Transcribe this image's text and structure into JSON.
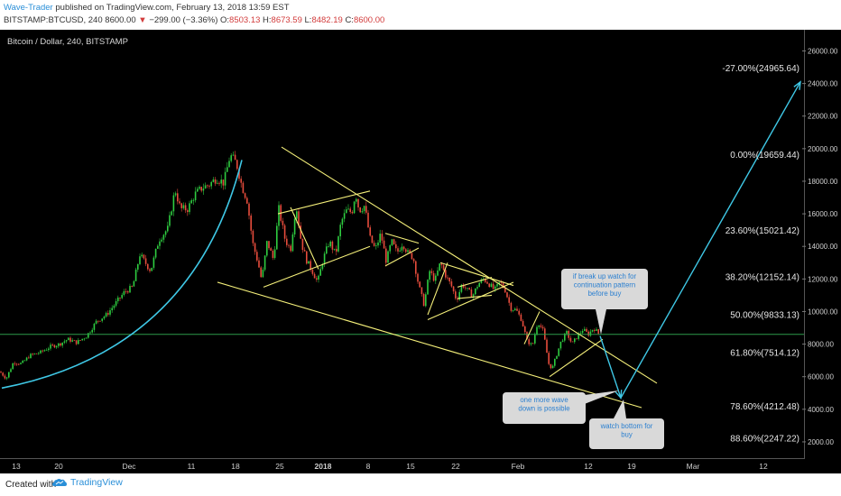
{
  "header": {
    "author": "Wave-Trader",
    "published_text": " published on TradingView.com, February 13, 2018 13:59 EST",
    "symbol": "BITSTAMP:BTCUSD, 240",
    "last": "8600.00",
    "change_arrow": "▼",
    "change": "−299.00 (−3.36%)",
    "o_label": "O:",
    "o_value": "8503.13",
    "h_label": "H:",
    "h_value": "8673.59",
    "l_label": "L:",
    "l_value": "8482.19",
    "c_label": "C:",
    "c_value": "8600.00"
  },
  "footer": {
    "created_with": "Created with",
    "brand": "TradingView",
    "logo_icon": "tradingview-cloud-icon"
  },
  "colors": {
    "background": "#000000",
    "candle_up": "#2ecc40",
    "candle_down": "#e74c3c",
    "trendline": "#f5f07a",
    "curve": "#3fc8e6",
    "hline": "#2d9a4a",
    "price_tag": "#2ecc40",
    "callout_bg": "#d9d9d9",
    "callout_text": "#2a7fd0"
  },
  "chart_data": {
    "type": "candlestick",
    "title": "Bitcoin / Dollar, 240, BITSTAMP",
    "ylim": [
      1000,
      27300
    ],
    "y_ticks": [
      "26000.00",
      "24000.00",
      "22000.00",
      "20000.00",
      "18000.00",
      "16000.00",
      "14000.00",
      "12000.00",
      "10000.00",
      "8000.00",
      "6000.00",
      "4000.00",
      "2000.00"
    ],
    "x_ticks": [
      "13",
      "20",
      "Dec",
      "11",
      "18",
      "25",
      "2018",
      "8",
      "15",
      "22",
      "Feb",
      "12",
      "19",
      "Mar",
      "12"
    ],
    "current_price": 8600,
    "current_price_label": "8600.00",
    "price_path": [
      [
        0,
        6300
      ],
      [
        7,
        5900
      ],
      [
        15,
        6900
      ],
      [
        24,
        6800
      ],
      [
        33,
        7300
      ],
      [
        45,
        7500
      ],
      [
        56,
        7850
      ],
      [
        66,
        8000
      ],
      [
        75,
        8300
      ],
      [
        85,
        8100
      ],
      [
        96,
        8500
      ],
      [
        107,
        9400
      ],
      [
        118,
        9800
      ],
      [
        128,
        10500
      ],
      [
        138,
        11200
      ],
      [
        147,
        11500
      ],
      [
        155,
        13500
      ],
      [
        167,
        12500
      ],
      [
        176,
        14400
      ],
      [
        186,
        15100
      ],
      [
        194,
        17500
      ],
      [
        200,
        16300
      ],
      [
        208,
        16300
      ],
      [
        216,
        17200
      ],
      [
        224,
        17600
      ],
      [
        232,
        17800
      ],
      [
        240,
        18200
      ],
      [
        248,
        17900
      ],
      [
        255,
        19600
      ],
      [
        262,
        19100
      ],
      [
        268,
        17700
      ],
      [
        274,
        16800
      ],
      [
        280,
        14200
      ],
      [
        286,
        13000
      ],
      [
        290,
        11900
      ],
      [
        296,
        14300
      ],
      [
        303,
        13200
      ],
      [
        309,
        16300
      ],
      [
        316,
        14400
      ],
      [
        322,
        13800
      ],
      [
        328,
        16600
      ],
      [
        334,
        14200
      ],
      [
        340,
        13100
      ],
      [
        346,
        12500
      ],
      [
        352,
        11800
      ],
      [
        358,
        13200
      ],
      [
        365,
        14300
      ],
      [
        372,
        13500
      ],
      [
        378,
        15500
      ],
      [
        384,
        16200
      ],
      [
        390,
        16100
      ],
      [
        394,
        17300
      ],
      [
        398,
        16200
      ],
      [
        404,
        16500
      ],
      [
        410,
        14500
      ],
      [
        416,
        13800
      ],
      [
        422,
        14800
      ],
      [
        428,
        13100
      ],
      [
        434,
        14300
      ],
      [
        440,
        13600
      ],
      [
        446,
        14200
      ],
      [
        452,
        13600
      ],
      [
        458,
        13300
      ],
      [
        464,
        11600
      ],
      [
        470,
        10400
      ],
      [
        476,
        12500
      ],
      [
        482,
        11900
      ],
      [
        488,
        13000
      ],
      [
        494,
        12200
      ],
      [
        500,
        11600
      ],
      [
        506,
        10700
      ],
      [
        512,
        11700
      ],
      [
        518,
        11300
      ],
      [
        524,
        11000
      ],
      [
        530,
        11700
      ],
      [
        536,
        12000
      ],
      [
        542,
        11700
      ],
      [
        548,
        11300
      ],
      [
        554,
        11800
      ],
      [
        560,
        11300
      ],
      [
        566,
        10200
      ],
      [
        572,
        10100
      ],
      [
        578,
        9500
      ],
      [
        584,
        8200
      ],
      [
        590,
        7900
      ],
      [
        596,
        9400
      ],
      [
        602,
        8800
      ],
      [
        608,
        6800
      ],
      [
        612,
        6500
      ],
      [
        616,
        7200
      ],
      [
        622,
        8200
      ],
      [
        628,
        8700
      ],
      [
        634,
        8000
      ],
      [
        640,
        8500
      ],
      [
        646,
        8900
      ],
      [
        652,
        8600
      ],
      [
        658,
        9000
      ],
      [
        664,
        8600
      ]
    ],
    "trendlines": [
      {
        "from": [
          312,
          20100
        ],
        "to": [
          728,
          5600
        ]
      },
      {
        "from": [
          241,
          11800
        ],
        "to": [
          711,
          4100
        ]
      },
      {
        "from": [
          308,
          16000
        ],
        "to": [
          410,
          17400
        ]
      },
      {
        "from": [
          292,
          11500
        ],
        "to": [
          410,
          14000
        ]
      },
      {
        "from": [
          322,
          16400
        ],
        "to": [
          353,
          12600
        ]
      },
      {
        "from": [
          427,
          14800
        ],
        "to": [
          464,
          14200
        ]
      },
      {
        "from": [
          427,
          12800
        ],
        "to": [
          464,
          13900
        ]
      },
      {
        "from": [
          474,
          9800
        ],
        "to": [
          496,
          13000
        ]
      },
      {
        "from": [
          488,
          13000
        ],
        "to": [
          569,
          11600
        ]
      },
      {
        "from": [
          474,
          9500
        ],
        "to": [
          569,
          11800
        ]
      },
      {
        "from": [
          507,
          11500
        ],
        "to": [
          545,
          12100
        ]
      },
      {
        "from": [
          507,
          10800
        ],
        "to": [
          545,
          11000
        ]
      },
      {
        "from": [
          581,
          8000
        ],
        "to": [
          598,
          10000
        ]
      },
      {
        "from": [
          609,
          6000
        ],
        "to": [
          668,
          8300
        ]
      }
    ],
    "projection": {
      "points": [
        [
          665,
          8500
        ],
        [
          688,
          4700
        ],
        [
          887,
          24100
        ]
      ]
    },
    "fib_levels": [
      {
        "label": "-27.00%(24965.64)",
        "price": 24965.64
      },
      {
        "label": "0.00%(19659.44)",
        "price": 19659.44
      },
      {
        "label": "23.60%(15021.42)",
        "price": 15021.42
      },
      {
        "label": "38.20%(12152.14)",
        "price": 12152.14
      },
      {
        "label": "50.00%(9833.13)",
        "price": 9833.13
      },
      {
        "label": "61.80%(7514.12)",
        "price": 7514.12
      },
      {
        "label": "78.60%(4212.48)",
        "price": 4212.48
      },
      {
        "label": "88.60%(2247.22)",
        "price": 2247.22
      }
    ],
    "annotations": [
      {
        "text": "if break up watch for continuation pattern before buy"
      },
      {
        "text": "one more wave down is possible"
      },
      {
        "text": "watch bottom for buy"
      }
    ]
  }
}
